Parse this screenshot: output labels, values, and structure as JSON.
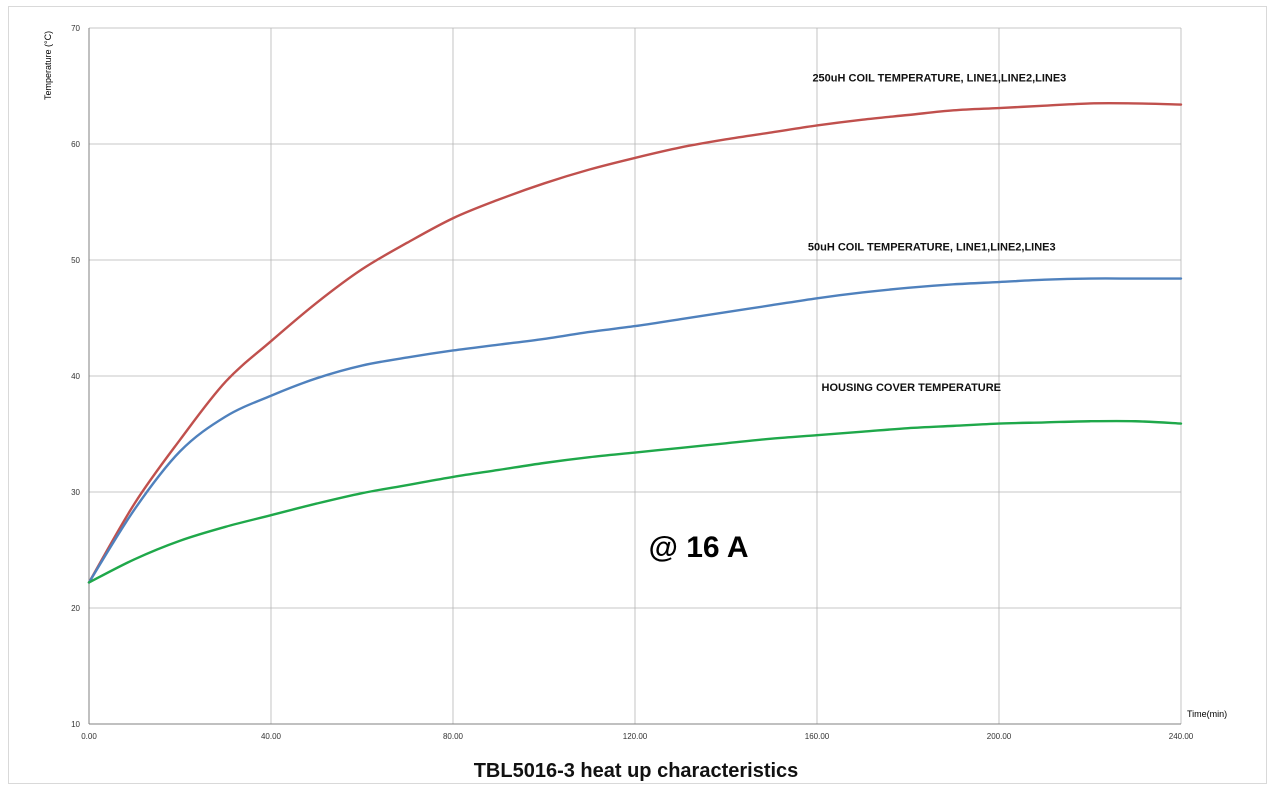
{
  "chart_data": {
    "type": "line",
    "title": "TBL5016-3 heat up characteristics",
    "xlabel": "Time(min)",
    "ylabel": "Temperature (°C)",
    "xlim": [
      0,
      240
    ],
    "ylim": [
      10,
      70
    ],
    "x_ticks": [
      0,
      40,
      80,
      120,
      160,
      200,
      240
    ],
    "x_tick_labels": [
      "0.00",
      "40.00",
      "80.00",
      "120.00",
      "160.00",
      "200.00",
      "240.00"
    ],
    "y_ticks": [
      10,
      20,
      30,
      40,
      50,
      60,
      70
    ],
    "y_tick_labels": [
      "10",
      "20",
      "30",
      "40",
      "50",
      "60",
      "70"
    ],
    "grid": true,
    "legend": "none",
    "series": [
      {
        "name": "250uH COIL TEMPERATURE, LINE1,LINE2,LINE3",
        "color": "#c0504d",
        "x": [
          0,
          10,
          20,
          30,
          40,
          50,
          60,
          70,
          80,
          90,
          100,
          110,
          120,
          130,
          140,
          150,
          160,
          170,
          180,
          190,
          200,
          210,
          220,
          230,
          240
        ],
        "y": [
          22.2,
          29.0,
          34.5,
          39.5,
          43.0,
          46.3,
          49.2,
          51.5,
          53.6,
          55.2,
          56.6,
          57.8,
          58.8,
          59.7,
          60.4,
          61.0,
          61.6,
          62.1,
          62.5,
          62.9,
          63.1,
          63.3,
          63.5,
          63.5,
          63.4
        ]
      },
      {
        "name": "50uH COIL TEMPERATURE, LINE1,LINE2,LINE3",
        "color": "#4f81bd",
        "x": [
          0,
          10,
          20,
          30,
          40,
          50,
          60,
          70,
          80,
          90,
          100,
          110,
          120,
          130,
          140,
          150,
          160,
          170,
          180,
          190,
          200,
          210,
          220,
          230,
          240
        ],
        "y": [
          22.2,
          28.5,
          33.5,
          36.5,
          38.3,
          39.8,
          40.9,
          41.6,
          42.2,
          42.7,
          43.2,
          43.8,
          44.3,
          44.9,
          45.5,
          46.1,
          46.7,
          47.2,
          47.6,
          47.9,
          48.1,
          48.3,
          48.4,
          48.4,
          48.4
        ]
      },
      {
        "name": "HOUSING COVER TEMPERATURE",
        "color": "#1fa84a",
        "x": [
          0,
          10,
          20,
          30,
          40,
          50,
          60,
          70,
          80,
          90,
          100,
          110,
          120,
          130,
          140,
          150,
          160,
          170,
          180,
          190,
          200,
          210,
          220,
          230,
          240
        ],
        "y": [
          22.2,
          24.2,
          25.8,
          27.0,
          28.0,
          29.0,
          29.9,
          30.6,
          31.3,
          31.9,
          32.5,
          33.0,
          33.4,
          33.8,
          34.2,
          34.6,
          34.9,
          35.2,
          35.5,
          35.7,
          35.9,
          36.0,
          36.1,
          36.1,
          35.9
        ]
      }
    ],
    "annotations": [
      {
        "text": "250uH COIL TEMPERATURE, LINE1,LINE2,LINE3",
        "x": 159,
        "y": 65.4,
        "series": 0
      },
      {
        "text": "50uH COIL TEMPERATURE, LINE1,LINE2,LINE3",
        "x": 158,
        "y": 50.8,
        "series": 1
      },
      {
        "text": "HOUSING COVER TEMPERATURE",
        "x": 161,
        "y": 38.7,
        "series": 2
      },
      {
        "text": "@ 16 A",
        "x": 123,
        "y": 24.4,
        "big": true
      }
    ]
  }
}
